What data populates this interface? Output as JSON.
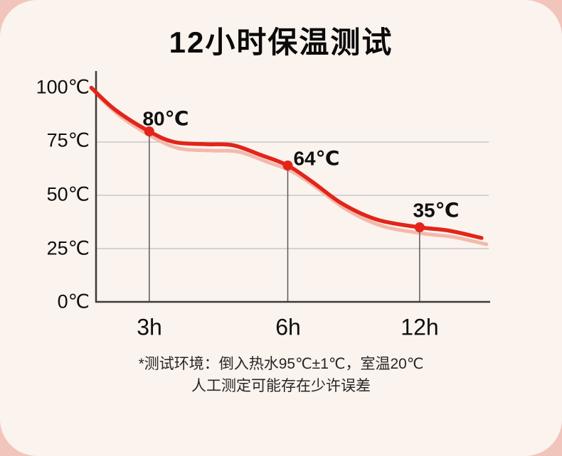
{
  "title": "12小时保温测试",
  "footnote": {
    "line1": "*测试环境：倒入热水95℃±1℃，室温20℃",
    "line2": "人工测定可能存在少许误差"
  },
  "colors": {
    "background": "#f1c5bb",
    "card": "#fbf3ee",
    "curve": "#e2251a",
    "curve_shadow": "#f3b9ab",
    "grid": "#c8c8c8",
    "drop_line": "#5a5a5a",
    "axis": "#3b3b3b",
    "marker": "#e2251a",
    "text": "#0f0f0f"
  },
  "chart_data": {
    "type": "line",
    "title": "12小时保温测试",
    "ylim": [
      0,
      100
    ],
    "y_ticks": [
      {
        "label": "100℃",
        "value": 100
      },
      {
        "label": "75℃",
        "value": 75
      },
      {
        "label": "50℃",
        "value": 50
      },
      {
        "label": "25℃",
        "value": 25
      },
      {
        "label": "0℃",
        "value": 0
      }
    ],
    "gridline_values": [
      75,
      50,
      25
    ],
    "x_ticks": [
      {
        "label": "3h",
        "pos": 0.136
      },
      {
        "label": "6h",
        "pos": 0.49
      },
      {
        "label": "12h",
        "pos": 0.827
      }
    ],
    "points": [
      {
        "x": "3h",
        "value": 80,
        "label": "80℃",
        "pos": 0.136
      },
      {
        "x": "6h",
        "value": 64,
        "label": "64℃",
        "pos": 0.49
      },
      {
        "x": "12h",
        "value": 35,
        "label": "35℃",
        "pos": 0.827
      }
    ],
    "start_value": 100,
    "curve_samples": [
      [
        -0.012,
        100.5
      ],
      [
        0.05,
        90
      ],
      [
        0.136,
        80
      ],
      [
        0.2,
        75
      ],
      [
        0.28,
        74
      ],
      [
        0.35,
        73.5
      ],
      [
        0.42,
        69
      ],
      [
        0.49,
        64
      ],
      [
        0.555,
        56
      ],
      [
        0.63,
        46
      ],
      [
        0.72,
        38.5
      ],
      [
        0.827,
        35
      ],
      [
        0.9,
        33.5
      ],
      [
        0.985,
        30
      ]
    ],
    "grid": "horizontal",
    "legend": "none"
  }
}
